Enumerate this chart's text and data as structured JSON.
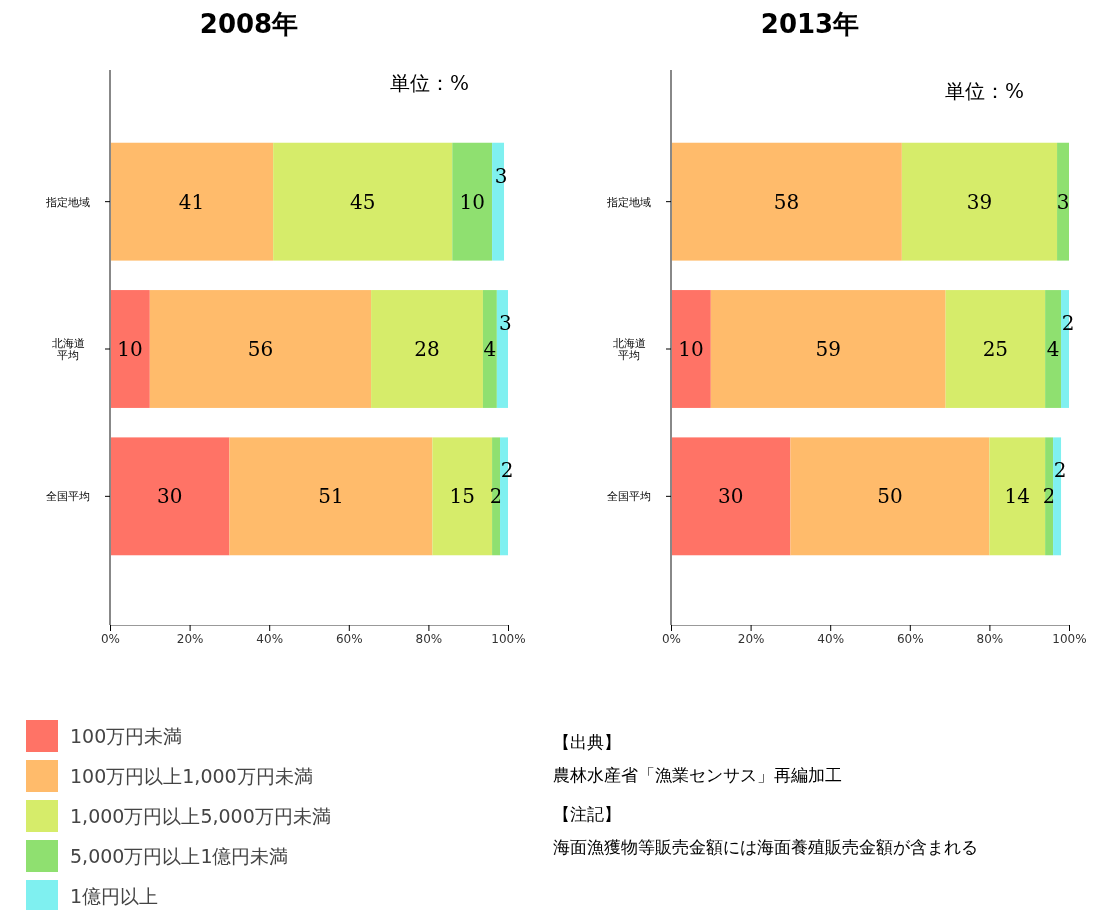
{
  "chart_data": [
    {
      "type": "bar",
      "title": "2008年",
      "orientation": "horizontal",
      "stacked": true,
      "categories": [
        "指定地域",
        "北海道平均",
        "全国平均"
      ],
      "series": [
        {
          "name": "100万円未満",
          "color": "#ff7366",
          "values": [
            null,
            10,
            30
          ],
          "value_labels": [
            null,
            "10",
            "30"
          ]
        },
        {
          "name": "100万円以上1,000万円未満",
          "color": "#ffbb6b",
          "values": [
            41,
            55.6,
            51
          ],
          "value_labels": [
            "41",
            "56",
            "51"
          ]
        },
        {
          "name": "1,000万円以上5,000万円未満",
          "color": "#d6ec6a",
          "values": [
            45,
            28.1,
            15
          ],
          "value_labels": [
            "45",
            "28",
            "15"
          ]
        },
        {
          "name": "5,000万円以上1億円未満",
          "color": "#8fe070",
          "values": [
            10,
            3.5,
            2
          ],
          "value_labels": [
            "10",
            "4",
            "2"
          ]
        },
        {
          "name": "1億円以上",
          "color": "#7ff0f0",
          "values": [
            3,
            2.8,
            2
          ],
          "value_labels": [
            "3",
            "3",
            "2"
          ]
        }
      ],
      "xlim": [
        0,
        100
      ],
      "xticks": [
        {
          "value": 0,
          "label": "0%"
        },
        {
          "value": 20,
          "label": "20%"
        },
        {
          "value": 40,
          "label": "40%"
        },
        {
          "value": 60,
          "label": "60%"
        },
        {
          "value": 80,
          "label": "80%"
        },
        {
          "value": 100,
          "label": "100%"
        }
      ],
      "legend": "bottom",
      "annotations": [
        "単位：%"
      ]
    },
    {
      "type": "bar",
      "title": "2013年",
      "orientation": "horizontal",
      "stacked": true,
      "categories": [
        "指定地域",
        "北海道平均",
        "全国平均"
      ],
      "series": [
        {
          "color": "#ff7366",
          "values": [
            null,
            10,
            30
          ]
        },
        {
          "color": "#ffbb6b",
          "values": [
            58,
            59,
            50
          ]
        },
        {
          "color": "#d6ec6a",
          "values": [
            39,
            25,
            14
          ]
        },
        {
          "color": "#8fe070",
          "values": [
            3,
            4,
            2
          ]
        },
        {
          "color": "#7ff0f0",
          "values": [
            null,
            2,
            2
          ]
        }
      ],
      "xlim": [
        0,
        100
      ],
      "xticks": [
        {
          "value": 0,
          "label": "0%"
        },
        {
          "value": 20,
          "label": "20%"
        },
        {
          "value": 40,
          "label": "40%"
        },
        {
          "value": 60,
          "label": "60%"
        },
        {
          "value": 80,
          "label": "80%"
        },
        {
          "value": 100,
          "label": "100%"
        }
      ],
      "data_labels": true,
      "annotations": [
        "単位：%",
        "【出典】",
        "農林水産省「漁業センサス」再編加工",
        "【注記】",
        "海面漁獲物等販売金額には海面養殖販売金額が含まれる"
      ]
    }
  ]
}
